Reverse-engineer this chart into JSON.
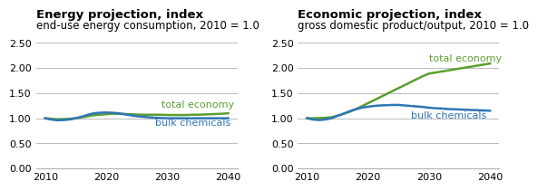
{
  "left_title_bold": "Energy projection, index",
  "left_subtitle": "end-use energy consumption, 2010 = 1.0",
  "right_title_bold": "Economic projection, index",
  "right_subtitle": "gross domestic product/output, 2010 = 1.0",
  "years": [
    2010,
    2011,
    2012,
    2013,
    2014,
    2015,
    2016,
    2017,
    2018,
    2019,
    2020,
    2021,
    2022,
    2023,
    2024,
    2025,
    2026,
    2027,
    2028,
    2029,
    2030,
    2031,
    2032,
    2033,
    2034,
    2035,
    2036,
    2037,
    2038,
    2039,
    2040
  ],
  "left_total": [
    1.0,
    0.99,
    0.98,
    0.985,
    0.99,
    1.0,
    1.02,
    1.04,
    1.06,
    1.07,
    1.08,
    1.09,
    1.09,
    1.085,
    1.08,
    1.075,
    1.07,
    1.07,
    1.07,
    1.07,
    1.065,
    1.065,
    1.065,
    1.065,
    1.07,
    1.07,
    1.075,
    1.08,
    1.085,
    1.09,
    1.1
  ],
  "left_bulk": [
    1.0,
    0.975,
    0.96,
    0.965,
    0.975,
    1.0,
    1.03,
    1.07,
    1.1,
    1.11,
    1.115,
    1.11,
    1.1,
    1.08,
    1.06,
    1.04,
    1.03,
    1.02,
    1.01,
    1.005,
    1.0,
    1.0,
    1.0,
    1.0,
    1.0,
    1.0,
    1.0,
    1.0,
    1.0,
    1.0,
    1.0
  ],
  "right_total": [
    1.0,
    1.0,
    1.005,
    1.01,
    1.02,
    1.05,
    1.09,
    1.13,
    1.18,
    1.24,
    1.3,
    1.36,
    1.42,
    1.48,
    1.54,
    1.6,
    1.66,
    1.72,
    1.78,
    1.84,
    1.89,
    1.91,
    1.93,
    1.95,
    1.97,
    1.99,
    2.01,
    2.03,
    2.05,
    2.07,
    2.09
  ],
  "right_bulk": [
    1.0,
    0.975,
    0.965,
    0.975,
    1.0,
    1.05,
    1.09,
    1.14,
    1.18,
    1.21,
    1.23,
    1.245,
    1.255,
    1.26,
    1.265,
    1.265,
    1.255,
    1.245,
    1.235,
    1.225,
    1.21,
    1.2,
    1.195,
    1.185,
    1.18,
    1.175,
    1.17,
    1.165,
    1.16,
    1.155,
    1.15
  ],
  "total_color": "#5a9e2f",
  "bulk_color": "#2e75b6",
  "ylim": [
    0.0,
    2.5
  ],
  "yticks": [
    0.0,
    0.5,
    1.0,
    1.5,
    2.0,
    2.5
  ],
  "xticks": [
    2010,
    2020,
    2030,
    2040
  ],
  "xlim": [
    2008.5,
    2041.5
  ],
  "bg_color": "#ffffff",
  "grid_color": "#b0b0b0",
  "title_fontsize": 9.5,
  "subtitle_fontsize": 8.5,
  "label_fontsize": 8,
  "tick_fontsize": 8,
  "line_width": 1.8
}
